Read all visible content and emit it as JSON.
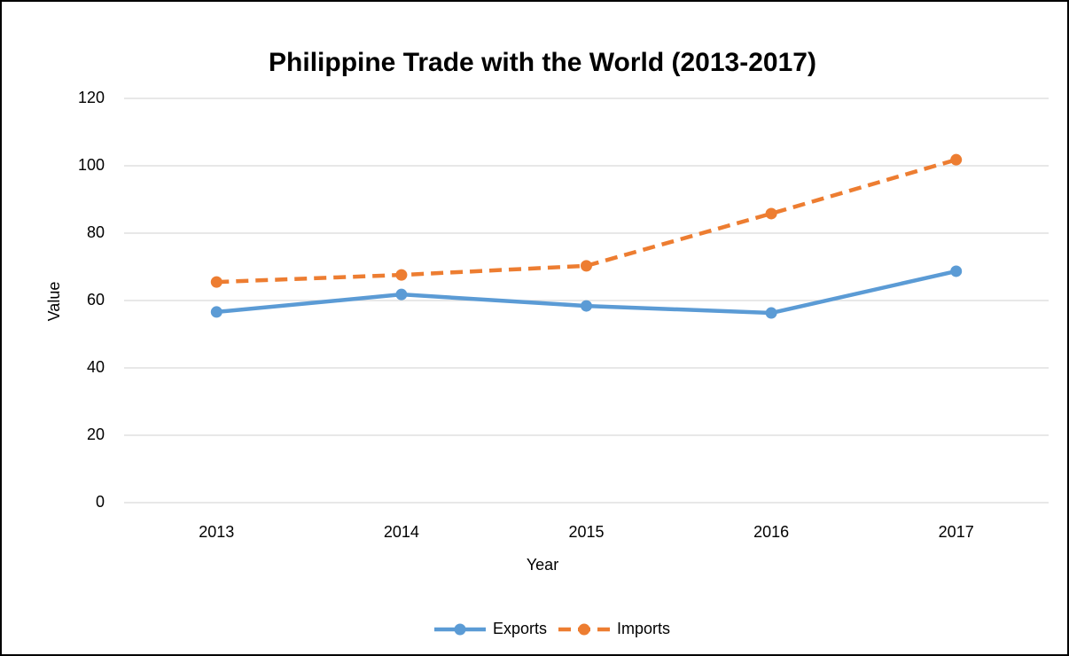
{
  "chart_data": {
    "type": "line",
    "title": "Philippine Trade with the World (2013-2017)",
    "x_label": "Year",
    "y_label": "Value",
    "categories": [
      "2013",
      "2014",
      "2015",
      "2016",
      "2017"
    ],
    "series": [
      {
        "name": "Exports",
        "color": "#5b9bd5",
        "line_style": "solid",
        "values": [
          56.6,
          61.8,
          58.4,
          56.3,
          68.7
        ]
      },
      {
        "name": "Imports",
        "color": "#ed7d31",
        "line_style": "dashed",
        "values": [
          65.5,
          67.6,
          70.3,
          85.8,
          101.8
        ]
      }
    ],
    "ylim": [
      0,
      120
    ],
    "yticks": [
      0,
      20,
      40,
      60,
      80,
      100,
      120
    ],
    "grid": true,
    "legend": "bottom"
  }
}
